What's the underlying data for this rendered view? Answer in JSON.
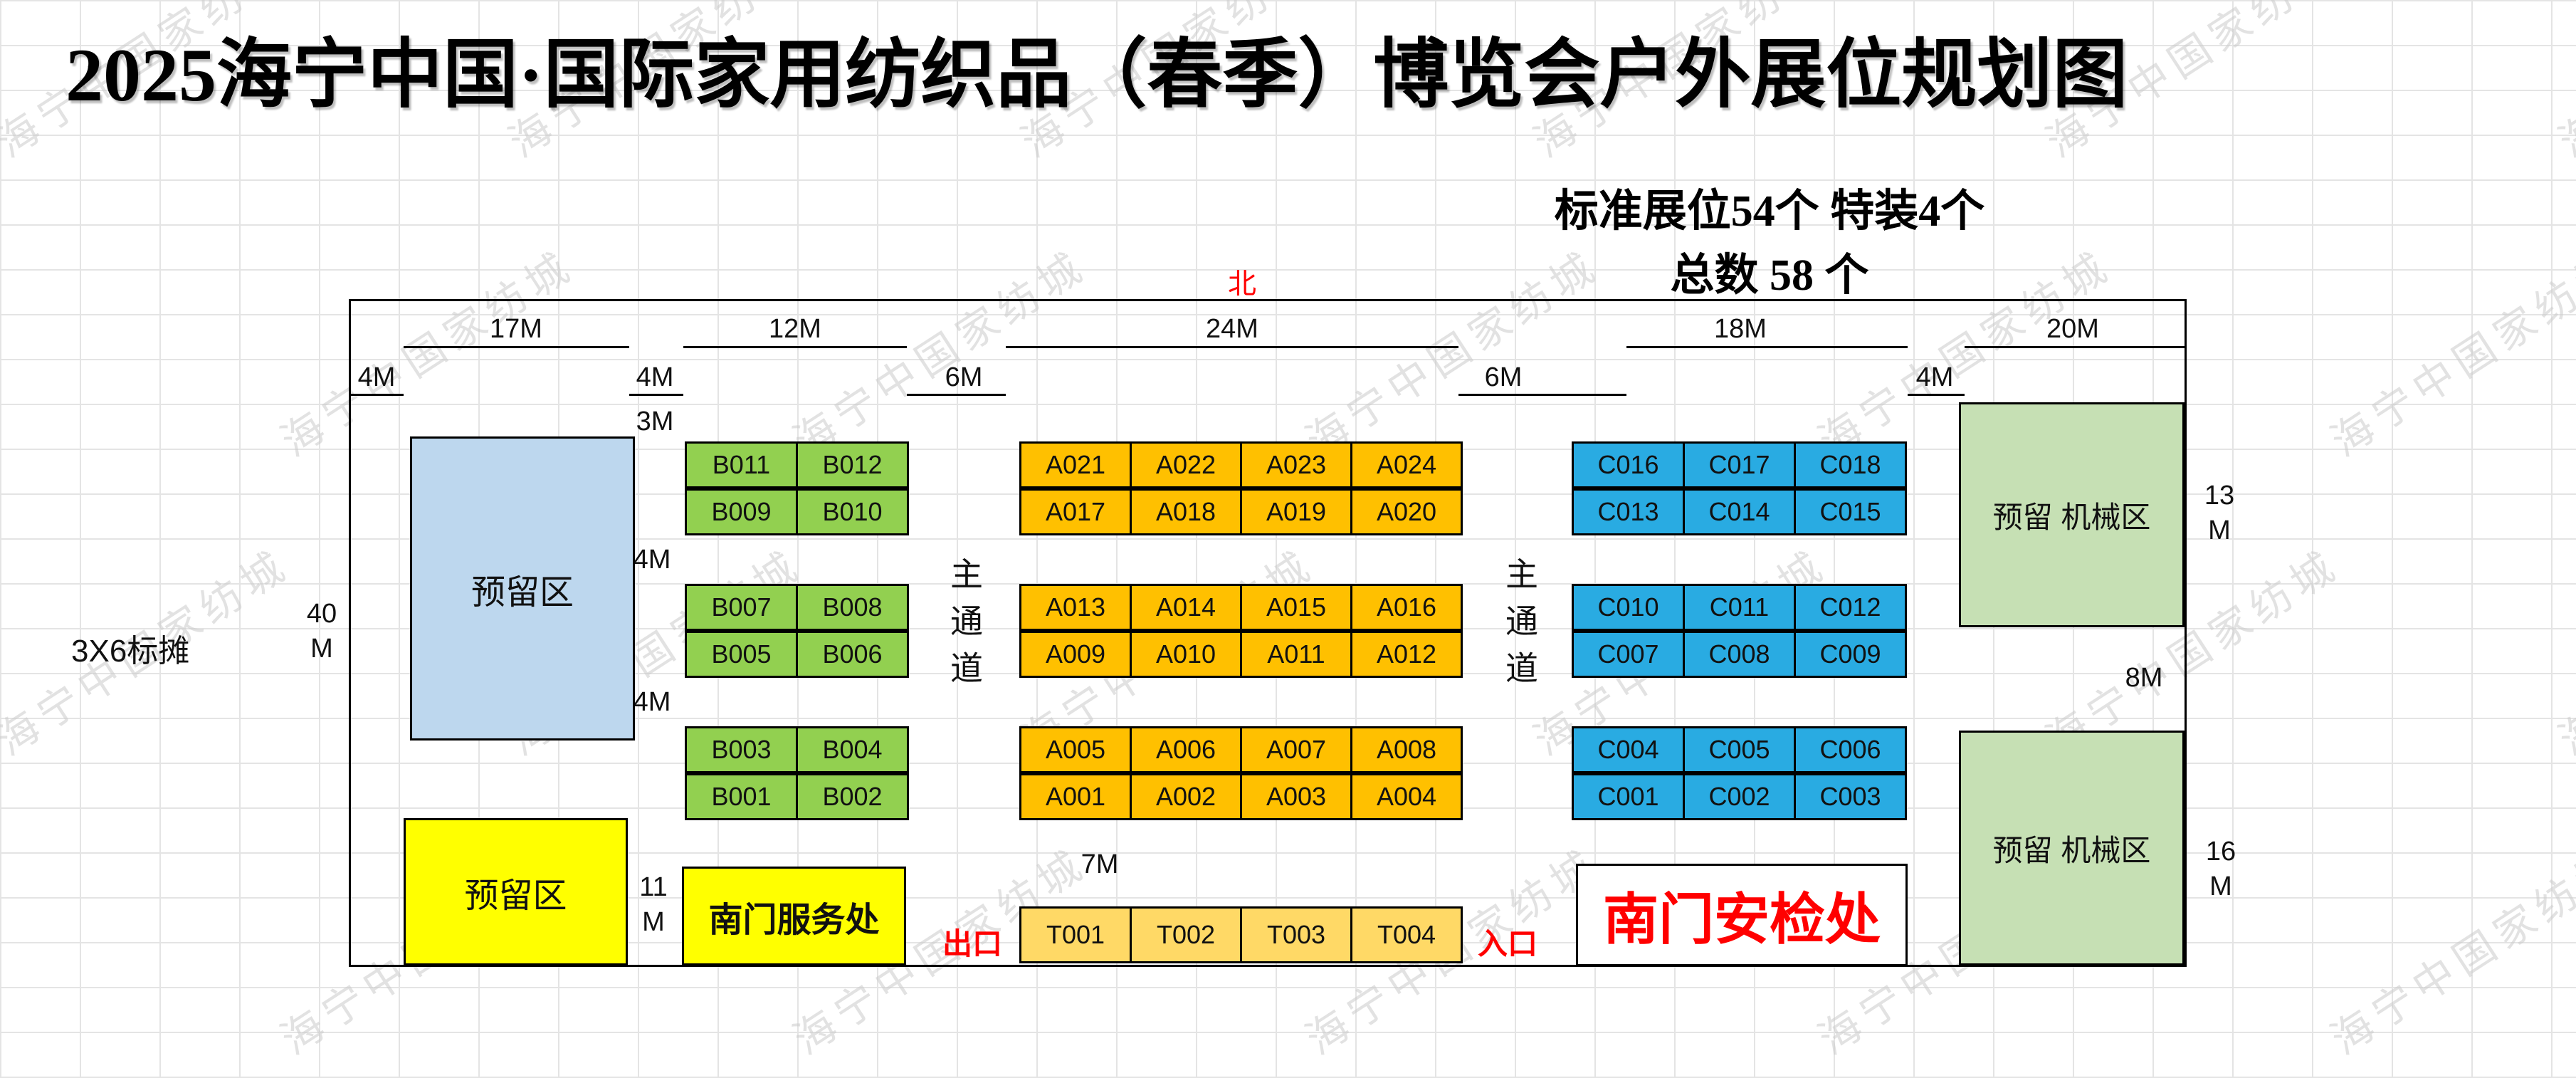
{
  "title": "2025海宁中国·国际家用纺织品（春季）博览会户外展位规划图",
  "stats": {
    "line1": "标准展位54个  特装4个",
    "line2": "总数 58 个"
  },
  "watermark": "海宁中国家纺城",
  "side_label": "3X6标摊",
  "compass": {
    "north": "北"
  },
  "gates": {
    "exit": "出口",
    "entrance": "入口"
  },
  "zones": {
    "reserved_blue": "预留区",
    "reserved_yellow": "预留区",
    "service": "南门服务处",
    "security": "南门安检处",
    "machinery_top": "预留 机械区",
    "machinery_bottom": "预留 机械区",
    "aisle_left": "主通道",
    "aisle_right": "主通道"
  },
  "dims": {
    "w17": "17M",
    "w12": "12M",
    "w24": "24M",
    "w18": "18M",
    "w20": "20M",
    "g4a": "4M",
    "g4b": "4M",
    "g6a": "6M",
    "g6b": "6M",
    "g4c": "4M",
    "d3": "3M",
    "gap4a": "4M",
    "gap4b": "4M",
    "left40": "40\nM",
    "left11": "11\nM",
    "d7": "7M",
    "r13": "13\nM",
    "r8": "8M",
    "r16": "16\nM"
  },
  "colors": {
    "booth_b": "#92D050",
    "booth_a": "#FFC000",
    "booth_c": "#29ABE2",
    "booth_t": "#FFD966",
    "reserved_blue": "#BDD7EE",
    "reserved_yellow": "#FFFF00",
    "machinery": "#C6E0B4",
    "accent_red": "#FF0000"
  },
  "booths": [
    {
      "group": "B",
      "color": "#92D050",
      "rows": [
        [
          "B011",
          "B012"
        ],
        [
          "B009",
          "B010"
        ],
        [
          "B007",
          "B008"
        ],
        [
          "B005",
          "B006"
        ],
        [
          "B003",
          "B004"
        ],
        [
          "B001",
          "B002"
        ]
      ]
    },
    {
      "group": "A",
      "color": "#FFC000",
      "rows": [
        [
          "A021",
          "A022",
          "A023",
          "A024"
        ],
        [
          "A017",
          "A018",
          "A019",
          "A020"
        ],
        [
          "A013",
          "A014",
          "A015",
          "A016"
        ],
        [
          "A009",
          "A010",
          "A011",
          "A012"
        ],
        [
          "A005",
          "A006",
          "A007",
          "A008"
        ],
        [
          "A001",
          "A002",
          "A003",
          "A004"
        ]
      ]
    },
    {
      "group": "C",
      "color": "#29ABE2",
      "rows": [
        [
          "C016",
          "C017",
          "C018"
        ],
        [
          "C013",
          "C014",
          "C015"
        ],
        [
          "C010",
          "C011",
          "C012"
        ],
        [
          "C007",
          "C008",
          "C009"
        ],
        [
          "C004",
          "C005",
          "C006"
        ],
        [
          "C001",
          "C002",
          "C003"
        ]
      ]
    },
    {
      "group": "T",
      "color": "#FFD966",
      "rows": [
        [
          "T001",
          "T002",
          "T003",
          "T004"
        ]
      ]
    }
  ]
}
